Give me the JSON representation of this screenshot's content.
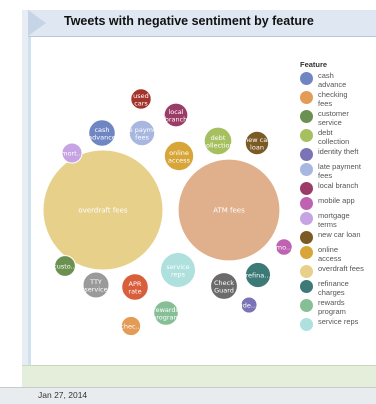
{
  "title": "Tweets with negative sentiment by feature",
  "footer": {
    "date": "Jan 27, 2014"
  },
  "legend": {
    "title": "Feature",
    "items": [
      {
        "label": "cash advance",
        "lines": [
          "cash",
          "advance"
        ],
        "color": "#6f86c2"
      },
      {
        "label": "checking fees",
        "lines": [
          "checking",
          "fees"
        ],
        "color": "#e39b55"
      },
      {
        "label": "customer service",
        "lines": [
          "customer",
          "service"
        ],
        "color": "#6b9050"
      },
      {
        "label": "debt collection",
        "lines": [
          "debt",
          "collection"
        ],
        "color": "#a6c060"
      },
      {
        "label": "identity theft",
        "lines": [
          "identity theft"
        ],
        "color": "#7a74b6"
      },
      {
        "label": "late payment fees",
        "lines": [
          "late payment",
          "fees"
        ],
        "color": "#a7b7e0"
      },
      {
        "label": "local branch",
        "lines": [
          "local branch"
        ],
        "color": "#9a3c67"
      },
      {
        "label": "mobile app",
        "lines": [
          "mobile app"
        ],
        "color": "#bf62b1"
      },
      {
        "label": "mortgage terms",
        "lines": [
          "mortgage",
          "terms"
        ],
        "color": "#c6a3e2"
      },
      {
        "label": "new car loan",
        "lines": [
          "new car loan"
        ],
        "color": "#7b5a24"
      },
      {
        "label": "online access",
        "lines": [
          "online",
          "access"
        ],
        "color": "#d7a538"
      },
      {
        "label": "overdraft fees",
        "lines": [
          "overdraft fees"
        ],
        "color": "#e6d08a"
      },
      {
        "label": "refinance charges",
        "lines": [
          "refinance",
          "charges"
        ],
        "color": "#3b7a76"
      },
      {
        "label": "rewards program",
        "lines": [
          "rewards",
          "program"
        ],
        "color": "#86bf96"
      },
      {
        "label": "service reps",
        "lines": [
          "service reps"
        ],
        "color": "#aee0dd"
      }
    ]
  },
  "chart_data": {
    "type": "bubble",
    "title": "Tweets with negative sentiment by feature",
    "legend_title": "Feature",
    "legend_position": "right",
    "bubbles": [
      {
        "feature": "overdraft fees",
        "label": "overdraft fees",
        "size": 100,
        "color": "#e6d08a"
      },
      {
        "feature": "ATM fees",
        "label": "ATM fees",
        "size": 72,
        "color": "#dfb08b"
      },
      {
        "feature": "service reps",
        "label": "service reps",
        "size": 8.5,
        "color": "#aee0dd"
      },
      {
        "feature": "online access",
        "label": "online access",
        "size": 6.0,
        "color": "#d7a538"
      },
      {
        "feature": "debt collection",
        "label": "debt collection",
        "size": 5.3,
        "color": "#a6c060"
      },
      {
        "feature": "Check Guard",
        "label": "Check Guard",
        "size": 5.0,
        "color": "#6b6b6b"
      },
      {
        "feature": "cash advance",
        "label": "cash advance",
        "size": 4.9,
        "color": "#6f86c2"
      },
      {
        "feature": "APR rate",
        "label": "APR rate",
        "size": 4.9,
        "color": "#d95e3c"
      },
      {
        "feature": "TTY service",
        "label": "TTY service",
        "size": 4.7,
        "color": "#9a9a9a"
      },
      {
        "feature": "late payment fees",
        "label": "late payment fees",
        "size": 4.5,
        "color": "#a7b7e0"
      },
      {
        "feature": "refinance charges",
        "label": "refina...",
        "size": 4.4,
        "color": "#3b7a76"
      },
      {
        "feature": "rewards program",
        "label": "rewards program",
        "size": 4.2,
        "color": "#86bf96"
      },
      {
        "feature": "local branch",
        "label": "local branch",
        "size": 3.9,
        "color": "#9a3c67"
      },
      {
        "feature": "new car loan",
        "label": "new car loan",
        "size": 3.8,
        "color": "#7b5a24"
      },
      {
        "feature": "customer service",
        "label": "custo...",
        "size": 3.0,
        "color": "#6b9050"
      },
      {
        "feature": "used cars",
        "label": "used cars",
        "size": 2.9,
        "color": "#a3342c"
      },
      {
        "feature": "mortgage terms",
        "label": "mort...",
        "size": 2.8,
        "color": "#c6a3e2"
      },
      {
        "feature": "checking fees",
        "label": "chec...",
        "size": 2.6,
        "color": "#e39b55"
      },
      {
        "feature": "mobile app",
        "label": "mo...",
        "size": 1.9,
        "color": "#bf62b1"
      },
      {
        "feature": "identity theft",
        "label": "ide...",
        "size": 1.8,
        "color": "#7a74b6"
      }
    ]
  }
}
